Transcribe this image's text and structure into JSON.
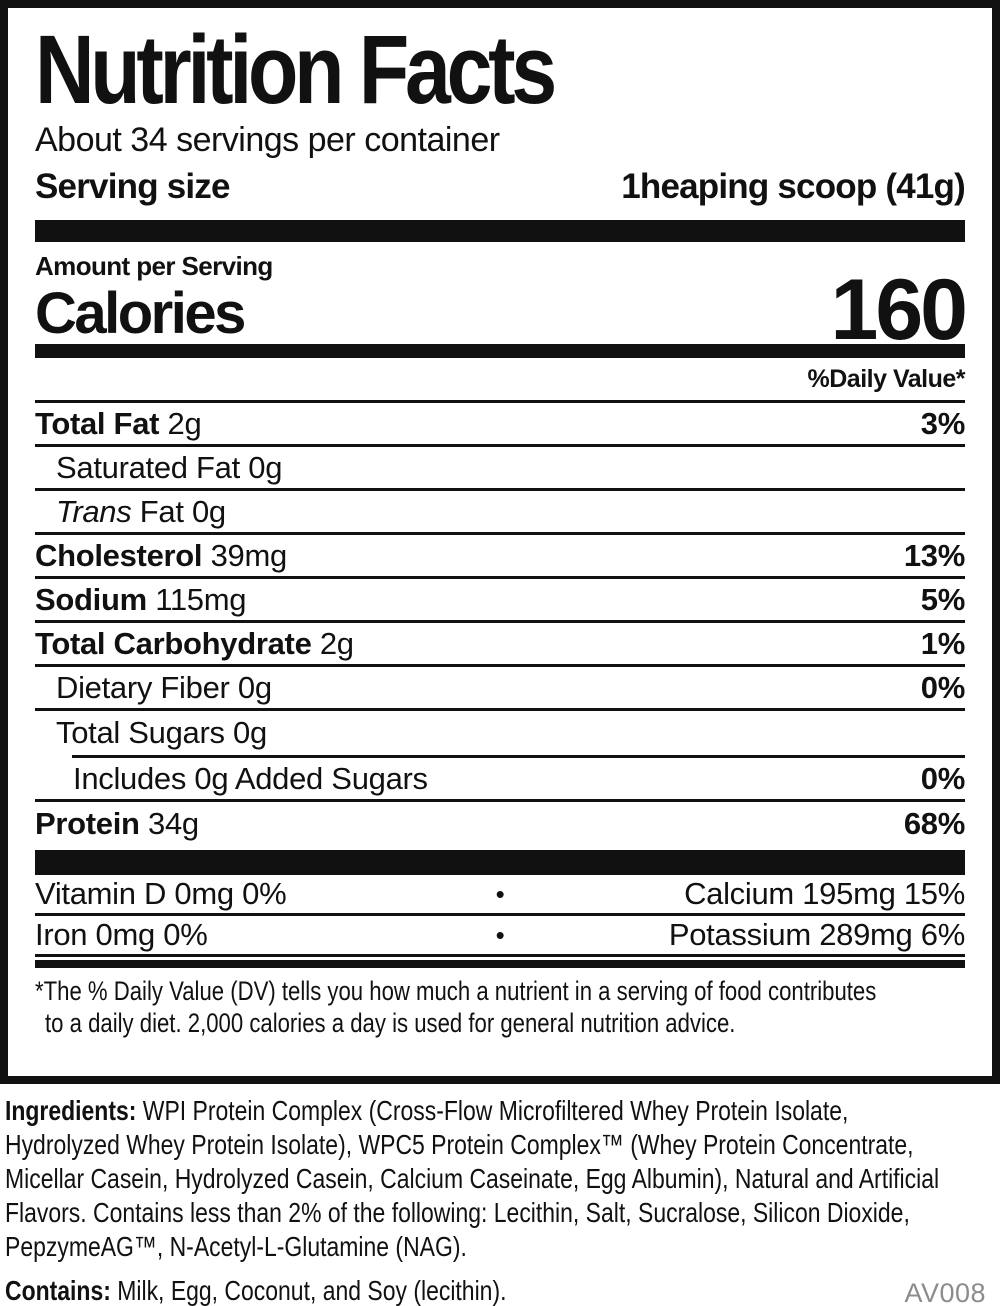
{
  "colors": {
    "text": "#111111",
    "bar": "#111111",
    "code_gray": "#8c8c8c"
  },
  "label": {
    "title": "Nutrition Facts",
    "servings_per_container": "About 34 servings per container",
    "serving_size_label": "Serving size",
    "serving_size_value": "1heaping scoop (41g)",
    "amount_per_serving": "Amount per Serving",
    "calories_label": "Calories",
    "calories_value": "160",
    "daily_value_header": "%Daily Value*",
    "rows": [
      {
        "name": "Total Fat",
        "amount": "2g",
        "dv": "3%"
      },
      {
        "name": "Saturated Fat",
        "amount": "0g",
        "dv": ""
      },
      {
        "name": "Trans",
        "amount": "Fat 0g",
        "dv": ""
      },
      {
        "name": "Cholesterol",
        "amount": "39mg",
        "dv": "13%"
      },
      {
        "name": "Sodium",
        "amount": "115mg",
        "dv": "5%"
      },
      {
        "name": "Total Carbohydrate",
        "amount": "2g",
        "dv": "1%"
      },
      {
        "name": "Dietary Fiber",
        "amount": "0g",
        "dv": "0%"
      },
      {
        "name": "Total Sugars",
        "amount": "0g",
        "dv": ""
      },
      {
        "name": "Includes 0g Added Sugars",
        "amount": "",
        "dv": "0%"
      },
      {
        "name": "Protein",
        "amount": "34g",
        "dv": "68%"
      }
    ],
    "vitamins": {
      "bullet": "•",
      "rows": [
        {
          "left": "Vitamin D 0mg 0%",
          "right": "Calcium 195mg 15%"
        },
        {
          "left": "Iron 0mg 0%",
          "right": "Potassium 289mg 6%"
        }
      ]
    },
    "footnote": {
      "line1": "*The % Daily Value (DV) tells you how much a nutrient in a serving of food contributes",
      "line2": "to a daily diet. 2,000 calories a day is used for general nutrition advice."
    }
  },
  "ingredients": {
    "label": "Ingredients:",
    "lines": [
      "WPI Protein Complex (Cross-Flow Microfiltered Whey Protein Isolate,",
      "Hydrolyzed Whey Protein Isolate), WPC5 Protein Complex™ (Whey Protein Concentrate,",
      "Micellar Casein, Hydrolyzed Casein, Calcium Caseinate, Egg Albumin), Natural and Artificial",
      "Flavors. Contains less than 2% of the following: Lecithin, Salt, Sucralose, Silicon Dioxide,",
      "PepzymeAG™, N-Acetyl-L-Glutamine (NAG)."
    ]
  },
  "contains": {
    "label": "Contains:",
    "text": "Milk, Egg, Coconut, and Soy (lecithin)."
  },
  "code": "AV008"
}
